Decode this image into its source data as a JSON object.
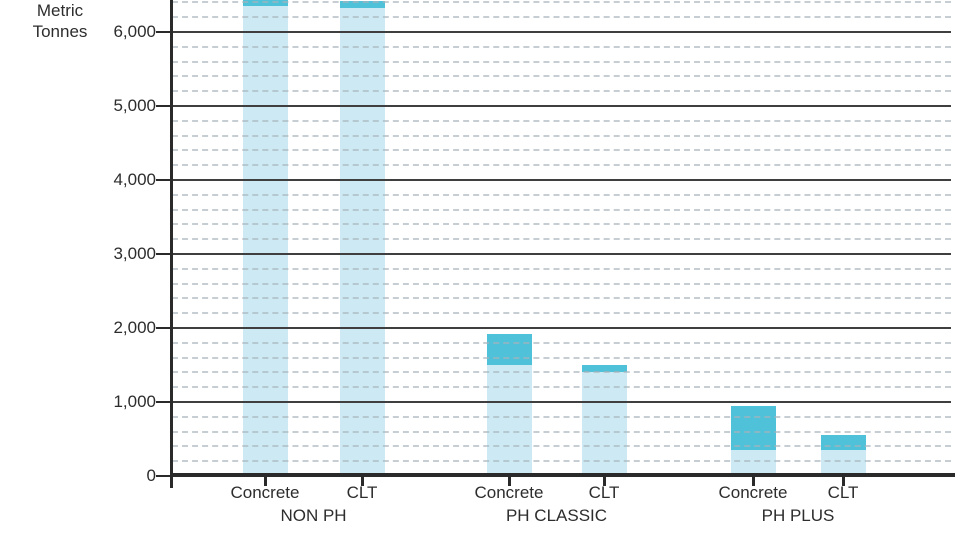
{
  "chart_data": {
    "type": "bar",
    "stacked": true,
    "title": "",
    "ylabel": "Metric Tonnes",
    "ylabel_lines": [
      "Metric",
      "Tonnes"
    ],
    "xlabel": "",
    "ylim": [
      0,
      6430
    ],
    "y_axis_clipped_at_top": true,
    "major_grid_step": 1000,
    "minor_grid_step": 200,
    "grid": "major solid dark, minor dashed light",
    "legend": "none visible",
    "y_ticks": [
      {
        "value": 6000,
        "label": "6,000"
      },
      {
        "value": 5000,
        "label": "5,000"
      },
      {
        "value": 4000,
        "label": "4,000"
      },
      {
        "value": 3000,
        "label": "3,000"
      },
      {
        "value": 2000,
        "label": "2,000"
      },
      {
        "value": 1000,
        "label": "1,000"
      },
      {
        "value": 0,
        "label": "0"
      }
    ],
    "segment_names": {
      "base": "light-blue base segment",
      "cap": "dark-teal top segment"
    },
    "groups": [
      {
        "label": "NON PH",
        "bars": [
          {
            "label": "Concrete",
            "base": 6350,
            "cap": 150,
            "total": 6500,
            "clipped_at_top": true
          },
          {
            "label": "CLT",
            "base": 6330,
            "cap": 90,
            "total": 6420,
            "clipped_at_top": false
          }
        ]
      },
      {
        "label": "PH CLASSIC",
        "bars": [
          {
            "label": "Concrete",
            "base": 1500,
            "cap": 420,
            "total": 1920,
            "clipped_at_top": false
          },
          {
            "label": "CLT",
            "base": 1400,
            "cap": 100,
            "total": 1500,
            "clipped_at_top": false
          }
        ]
      },
      {
        "label": "PH PLUS",
        "bars": [
          {
            "label": "Concrete",
            "base": 350,
            "cap": 600,
            "total": 950,
            "clipped_at_top": false
          },
          {
            "label": "CLT",
            "base": 350,
            "cap": 200,
            "total": 550,
            "clipped_at_top": false
          }
        ]
      }
    ],
    "colors": {
      "base_segment": "#cdeaf4",
      "cap_segment": "#4fc1d9",
      "major_grid": "#3f3f3f",
      "axis": "#2a2a2a",
      "minor_grid": "#a8b4bb",
      "text": "#2d2d2d",
      "background": "#ffffff"
    }
  }
}
